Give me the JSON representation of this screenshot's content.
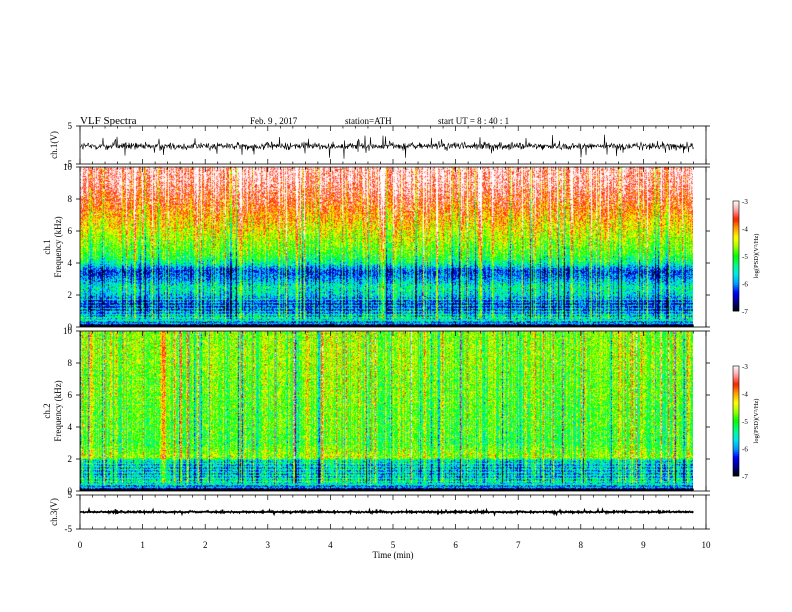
{
  "header": {
    "title": "VLF Spectra",
    "date": "Feb. 9 , 2017",
    "station": "station=ATH",
    "start": "start UT =  8 : 40 : 1"
  },
  "chart_data": [
    {
      "type": "line",
      "name": "ch1-waveform",
      "ylabel": "ch.1(V)",
      "yticks": [
        "5",
        "-5"
      ],
      "ylim": [
        -5,
        5
      ],
      "xlim": [
        0,
        10
      ],
      "x_extent_min": 9.8,
      "level": -0.3,
      "noise_amplitude": 1.5,
      "color": "#000000"
    },
    {
      "type": "heatmap",
      "name": "ch1-spectrogram",
      "ylabel": "ch.1 Frequency (kHz)",
      "ylabel_lines": [
        "ch.1",
        "Frequency (kHz)"
      ],
      "yticks": [
        "0",
        "2",
        "4",
        "6",
        "8",
        "10"
      ],
      "ylim": [
        0,
        10
      ],
      "xlim": [
        0,
        10
      ],
      "x_extent_min": 9.8,
      "profile_khz": [
        0,
        0.5,
        1,
        1.5,
        2,
        2.5,
        3,
        3.5,
        4,
        4.5,
        5,
        6,
        7,
        8,
        9,
        10
      ],
      "profile_logpsd": [
        -6.9,
        -5.6,
        -6.2,
        -6.4,
        -5.7,
        -5.5,
        -6.0,
        -6.3,
        -5.4,
        -5.0,
        -4.8,
        -4.4,
        -4.0,
        -3.6,
        -3.3,
        -3.2
      ],
      "colorbar": {
        "label": "log(PSD)(V²/Hz)",
        "ticks": [
          "-3",
          "-4",
          "-5",
          "-6",
          "-7"
        ],
        "range": [
          -7,
          -3
        ]
      }
    },
    {
      "type": "heatmap",
      "name": "ch2-spectrogram",
      "ylabel": "ch.2 Frequency (kHz)",
      "ylabel_lines": [
        "ch.2",
        "Frequency (kHz)"
      ],
      "yticks": [
        "0",
        "2",
        "4",
        "6",
        "8",
        "10"
      ],
      "ylim": [
        0,
        10
      ],
      "xlim": [
        0,
        10
      ],
      "x_extent_min": 9.8,
      "profile_khz": [
        0,
        0.5,
        1,
        1.5,
        1.9,
        2.1,
        3,
        4,
        5,
        6,
        7,
        8,
        9,
        10
      ],
      "profile_logpsd": [
        -6.9,
        -5.6,
        -5.9,
        -5.9,
        -5.6,
        -4.6,
        -5.0,
        -4.9,
        -4.9,
        -4.8,
        -4.8,
        -4.7,
        -4.7,
        -4.7
      ],
      "colorbar": {
        "label": "log(PSD)(V²/Hz)",
        "ticks": [
          "-3",
          "-4",
          "-5",
          "-6",
          "-7"
        ],
        "range": [
          -7,
          -3
        ]
      }
    },
    {
      "type": "line",
      "name": "ch3-waveform",
      "ylabel": "ch.3(V)",
      "yticks": [
        "5",
        "-5"
      ],
      "ylim": [
        -5,
        5
      ],
      "xlim": [
        0,
        10
      ],
      "x_extent_min": 9.8,
      "level": 0,
      "noise_amplitude": 0.35,
      "color": "#000000"
    }
  ],
  "x_axis": {
    "label": "Time (min)",
    "ticks": [
      "0",
      "1",
      "2",
      "3",
      "4",
      "5",
      "6",
      "7",
      "8",
      "9",
      "10"
    ],
    "range": [
      0,
      10
    ]
  },
  "colormap": [
    "#000000",
    "#00008c",
    "#0000ff",
    "#00a0ff",
    "#00e8e8",
    "#00ff80",
    "#00ff00",
    "#a0ff00",
    "#ffff00",
    "#ffa000",
    "#ff2000",
    "#ffa0a0",
    "#ffffff"
  ]
}
